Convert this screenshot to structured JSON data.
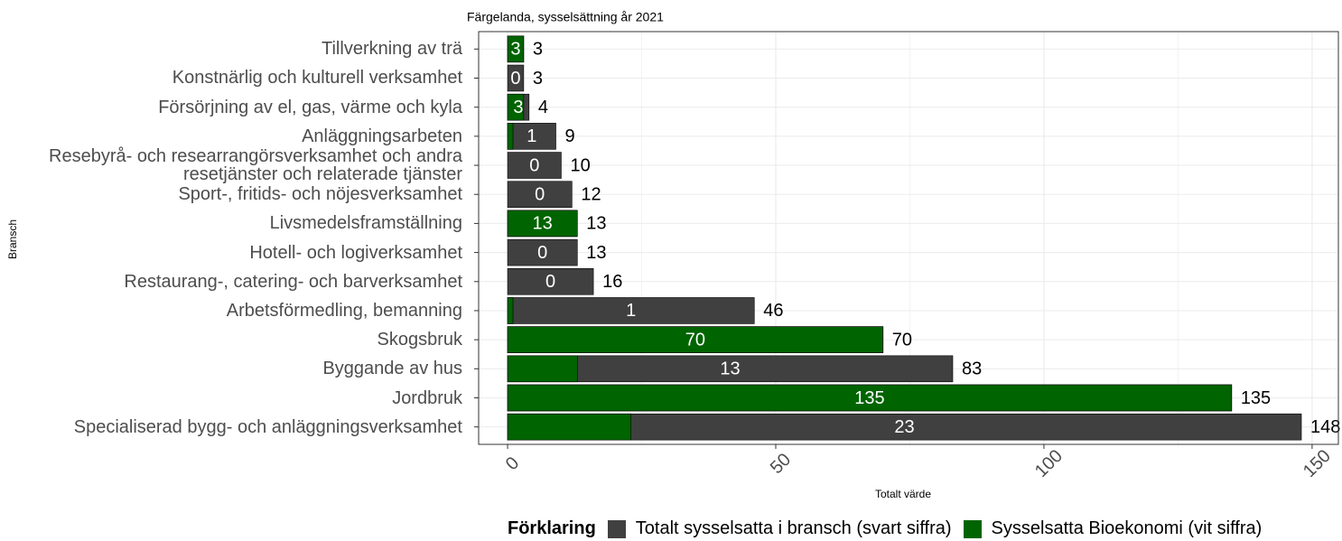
{
  "chart_data": {
    "type": "bar",
    "orientation": "horizontal",
    "title": "Färgelanda, sysselsättning år 2021",
    "x_label": "Totalt värde",
    "y_label": "Bransch",
    "legend_title": "Förklaring",
    "categories": [
      "Tillverkning av trä",
      "Konstnärlig och kulturell verksamhet",
      "Försörjning av el, gas, värme och kyla",
      "Anläggningsarbeten",
      "Resebyrå- och researrangörsverksamhet och andra\nresetjänster och relaterade tjänster",
      "Sport-, fritids- och nöjesverksamhet",
      "Livsmedelsframställning",
      "Hotell- och logiverksamhet",
      "Restaurang-, catering- och barverksamhet",
      "Arbetsförmedling, bemanning",
      "Skogsbruk",
      "Byggande av hus",
      "Jordbruk",
      "Specialiserad bygg- och anläggningsverksamhet"
    ],
    "series": [
      {
        "name": "Totalt sysselsatta i bransch (svart siffra)",
        "color": "#404040",
        "values": [
          3,
          3,
          4,
          9,
          10,
          12,
          13,
          13,
          16,
          46,
          70,
          83,
          135,
          148
        ]
      },
      {
        "name": "Sysselsatta Bioekonomi (vit siffra)",
        "color": "#006400",
        "values": [
          3,
          0,
          3,
          1,
          0,
          0,
          13,
          0,
          0,
          1,
          70,
          13,
          135,
          23
        ]
      }
    ],
    "xlim": [
      -5.4,
      154.9
    ],
    "xticks": [
      0,
      50,
      100,
      150
    ],
    "grid": true,
    "legend_position": "bottom"
  }
}
